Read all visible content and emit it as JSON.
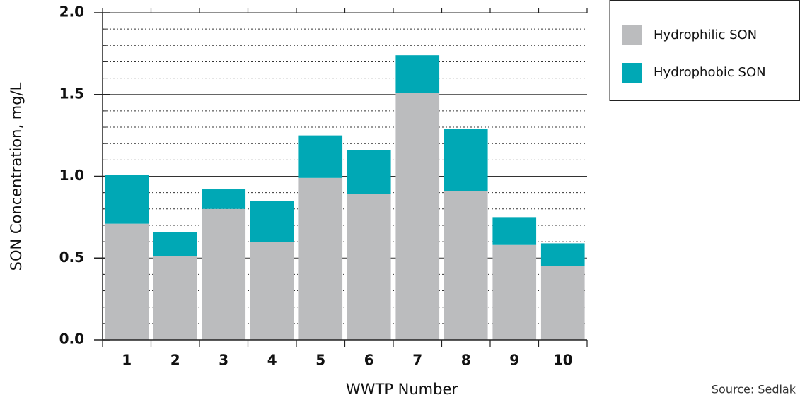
{
  "chart_data": {
    "type": "stacked_bar",
    "categories": [
      "1",
      "2",
      "3",
      "4",
      "5",
      "6",
      "7",
      "8",
      "9",
      "10"
    ],
    "series": [
      {
        "name": "Hydrophilic SON",
        "color": "#bbbcbe",
        "values": [
          0.71,
          0.51,
          0.8,
          0.6,
          0.99,
          0.89,
          1.51,
          0.91,
          0.58,
          0.45
        ]
      },
      {
        "name": "Hydrophobic SON",
        "color": "#00a8b5",
        "values": [
          0.3,
          0.15,
          0.12,
          0.25,
          0.26,
          0.27,
          0.23,
          0.38,
          0.17,
          0.14
        ]
      }
    ],
    "xlabel": "WWTP Number",
    "ylabel": "SON Concentration, mg/L",
    "ylim": [
      0,
      2
    ],
    "yticks": [
      {
        "value": 0,
        "label": "0.0"
      },
      {
        "value": 0.5,
        "label": "0.5"
      },
      {
        "value": 1,
        "label": "1.0"
      },
      {
        "value": 1.5,
        "label": "1.5"
      },
      {
        "value": 2,
        "label": "2.0"
      }
    ],
    "minor_yticks": [
      0.1,
      0.2,
      0.3,
      0.4,
      0.6,
      0.7,
      0.8,
      0.9,
      1.1,
      1.2,
      1.3,
      1.4,
      1.6,
      1.7,
      1.8,
      1.9
    ],
    "grid": true,
    "legend": "upper right",
    "source": "Source: Sedlak"
  }
}
